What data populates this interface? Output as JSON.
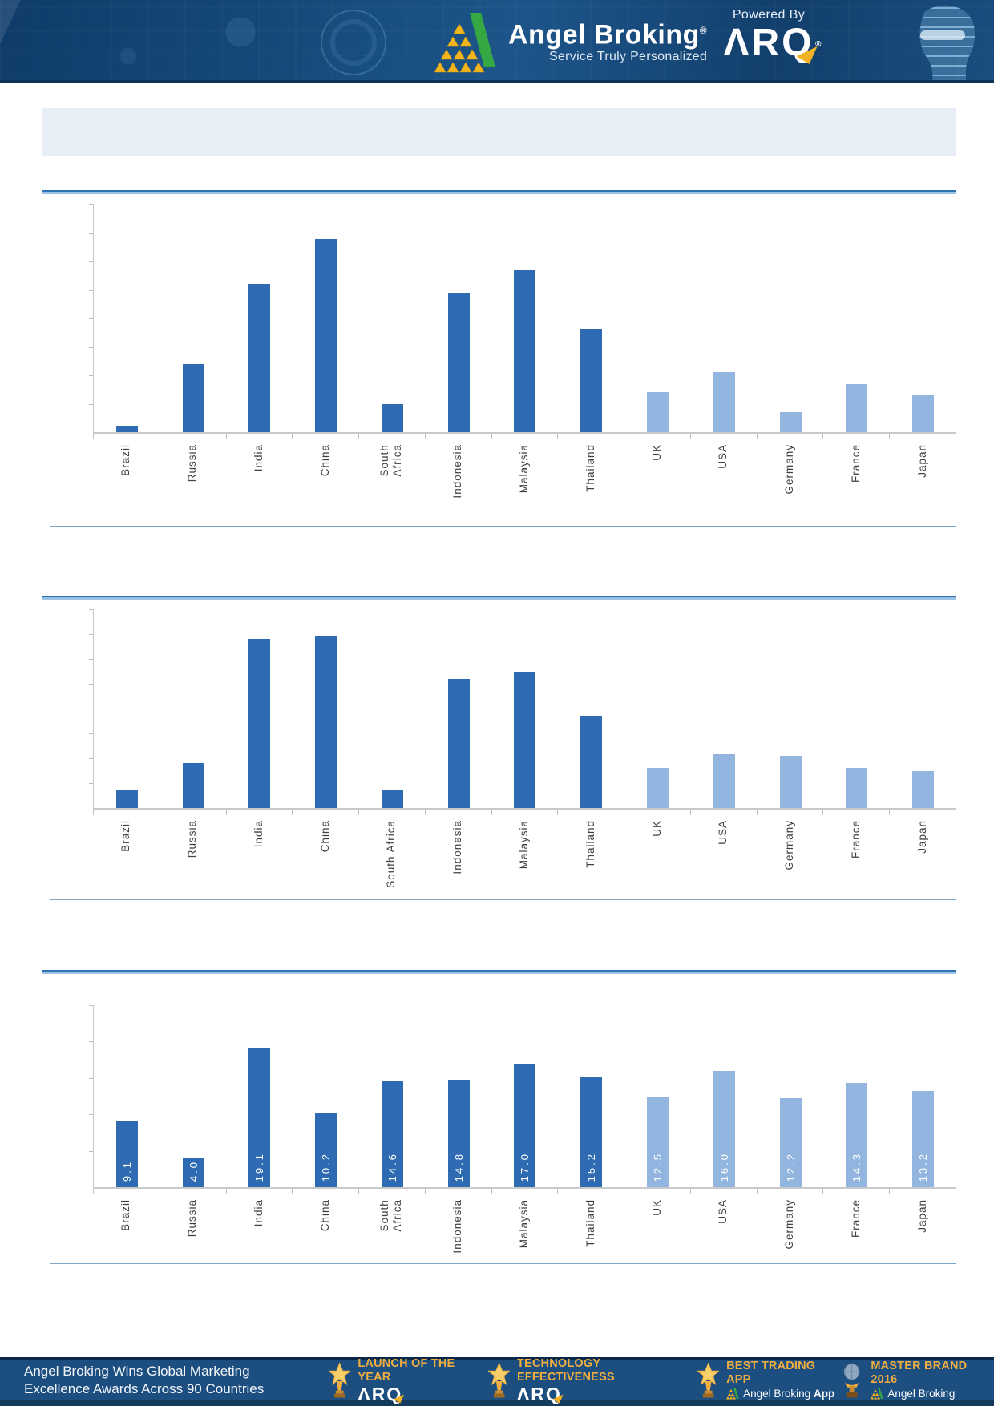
{
  "header": {
    "brand": "Angel Broking",
    "brand_reg": "®",
    "tagline": "Service Truly Personalized",
    "powered_by": "Powered By",
    "arq_wordmark": "ΛRQ",
    "arq_reg": "®",
    "colors": {
      "header_bg": "#164a7a",
      "arq_triangle": "#f2b224",
      "logo_green": "#35a843",
      "logo_yellow": "#f2b51b"
    }
  },
  "banner": {
    "text": ""
  },
  "chart_data": [
    {
      "type": "bar",
      "title": "",
      "xlabel": "",
      "ylabel": "",
      "categories": [
        "Brazil",
        "Russia",
        "India",
        "China",
        "South\nAfrica",
        "Indonesia",
        "Malaysia",
        "Thailand",
        "UK",
        "USA",
        "Germany",
        "France",
        "Japan"
      ],
      "values": [
        0.2,
        2.4,
        5.2,
        6.8,
        1.0,
        4.9,
        5.7,
        3.6,
        1.4,
        2.1,
        0.7,
        1.7,
        1.3
      ],
      "ylim": [
        0,
        8
      ],
      "ytick_count": 8,
      "grid": false,
      "legend": false,
      "bar_labels": null,
      "dark_count": 8,
      "bar_colors": {
        "dark": "#2e6bb2",
        "light": "#92b5df"
      }
    },
    {
      "type": "bar",
      "title": "",
      "xlabel": "",
      "ylabel": "",
      "categories": [
        "Brazil",
        "Russia",
        "India",
        "China",
        "South Africa",
        "Indonesia",
        "Malaysia",
        "Thailand",
        "UK",
        "USA",
        "Germany",
        "France",
        "Japan"
      ],
      "values": [
        0.7,
        1.8,
        6.8,
        6.9,
        0.7,
        5.2,
        5.5,
        3.7,
        1.6,
        2.2,
        2.1,
        1.6,
        1.5
      ],
      "ylim": [
        0,
        8
      ],
      "ytick_count": 8,
      "grid": false,
      "legend": false,
      "bar_labels": null,
      "dark_count": 8,
      "bar_colors": {
        "dark": "#2e6bb2",
        "light": "#92b5df"
      }
    },
    {
      "type": "bar",
      "title": "",
      "xlabel": "",
      "ylabel": "",
      "categories": [
        "Brazil",
        "Russia",
        "India",
        "China",
        "South\nAfrica",
        "Indonesia",
        "Malaysia",
        "Thailand",
        "UK",
        "USA",
        "Germany",
        "France",
        "Japan"
      ],
      "values": [
        9.1,
        4.0,
        19.1,
        10.2,
        14.6,
        14.8,
        17.0,
        15.2,
        12.5,
        16.0,
        12.2,
        14.3,
        13.2
      ],
      "ylim": [
        0,
        25
      ],
      "ytick_count": 5,
      "grid": false,
      "legend": false,
      "bar_labels": [
        "9.1",
        "4.0",
        "19.1",
        "10.2",
        "14.6",
        "14.8",
        "17.0",
        "15.2",
        "12.5",
        "16.0",
        "12.2",
        "14.3",
        "13.2"
      ],
      "dark_count": 8,
      "bar_colors": {
        "dark": "#2e6bb2",
        "light": "#92b5df"
      }
    }
  ],
  "footer": {
    "headline_line1": "Angel Broking Wins Global Marketing",
    "headline_line2": "Excellence Awards Across 90 Countries",
    "awards": [
      {
        "title": "LAUNCH OF THE YEAR",
        "subtitle": "ΛRQ",
        "subtitle_bold": "",
        "style": "arq",
        "icon": "star-trophy-icon"
      },
      {
        "title": "TECHNOLOGY EFFECTIVENESS",
        "subtitle": "ΛRQ",
        "subtitle_bold": "",
        "style": "arq",
        "icon": "star-trophy-icon"
      },
      {
        "title": "BEST TRADING APP",
        "subtitle": "Angel Broking",
        "subtitle_bold": "App",
        "style": "logo",
        "icon": "star-trophy-icon"
      },
      {
        "title": "MASTER BRAND 2016",
        "subtitle": "Angel Broking",
        "subtitle_bold": "",
        "style": "logo",
        "icon": "globe-trophy-icon"
      }
    ],
    "colors": {
      "gold": "#efae3f",
      "footer_bg": "#1d4e80"
    }
  }
}
